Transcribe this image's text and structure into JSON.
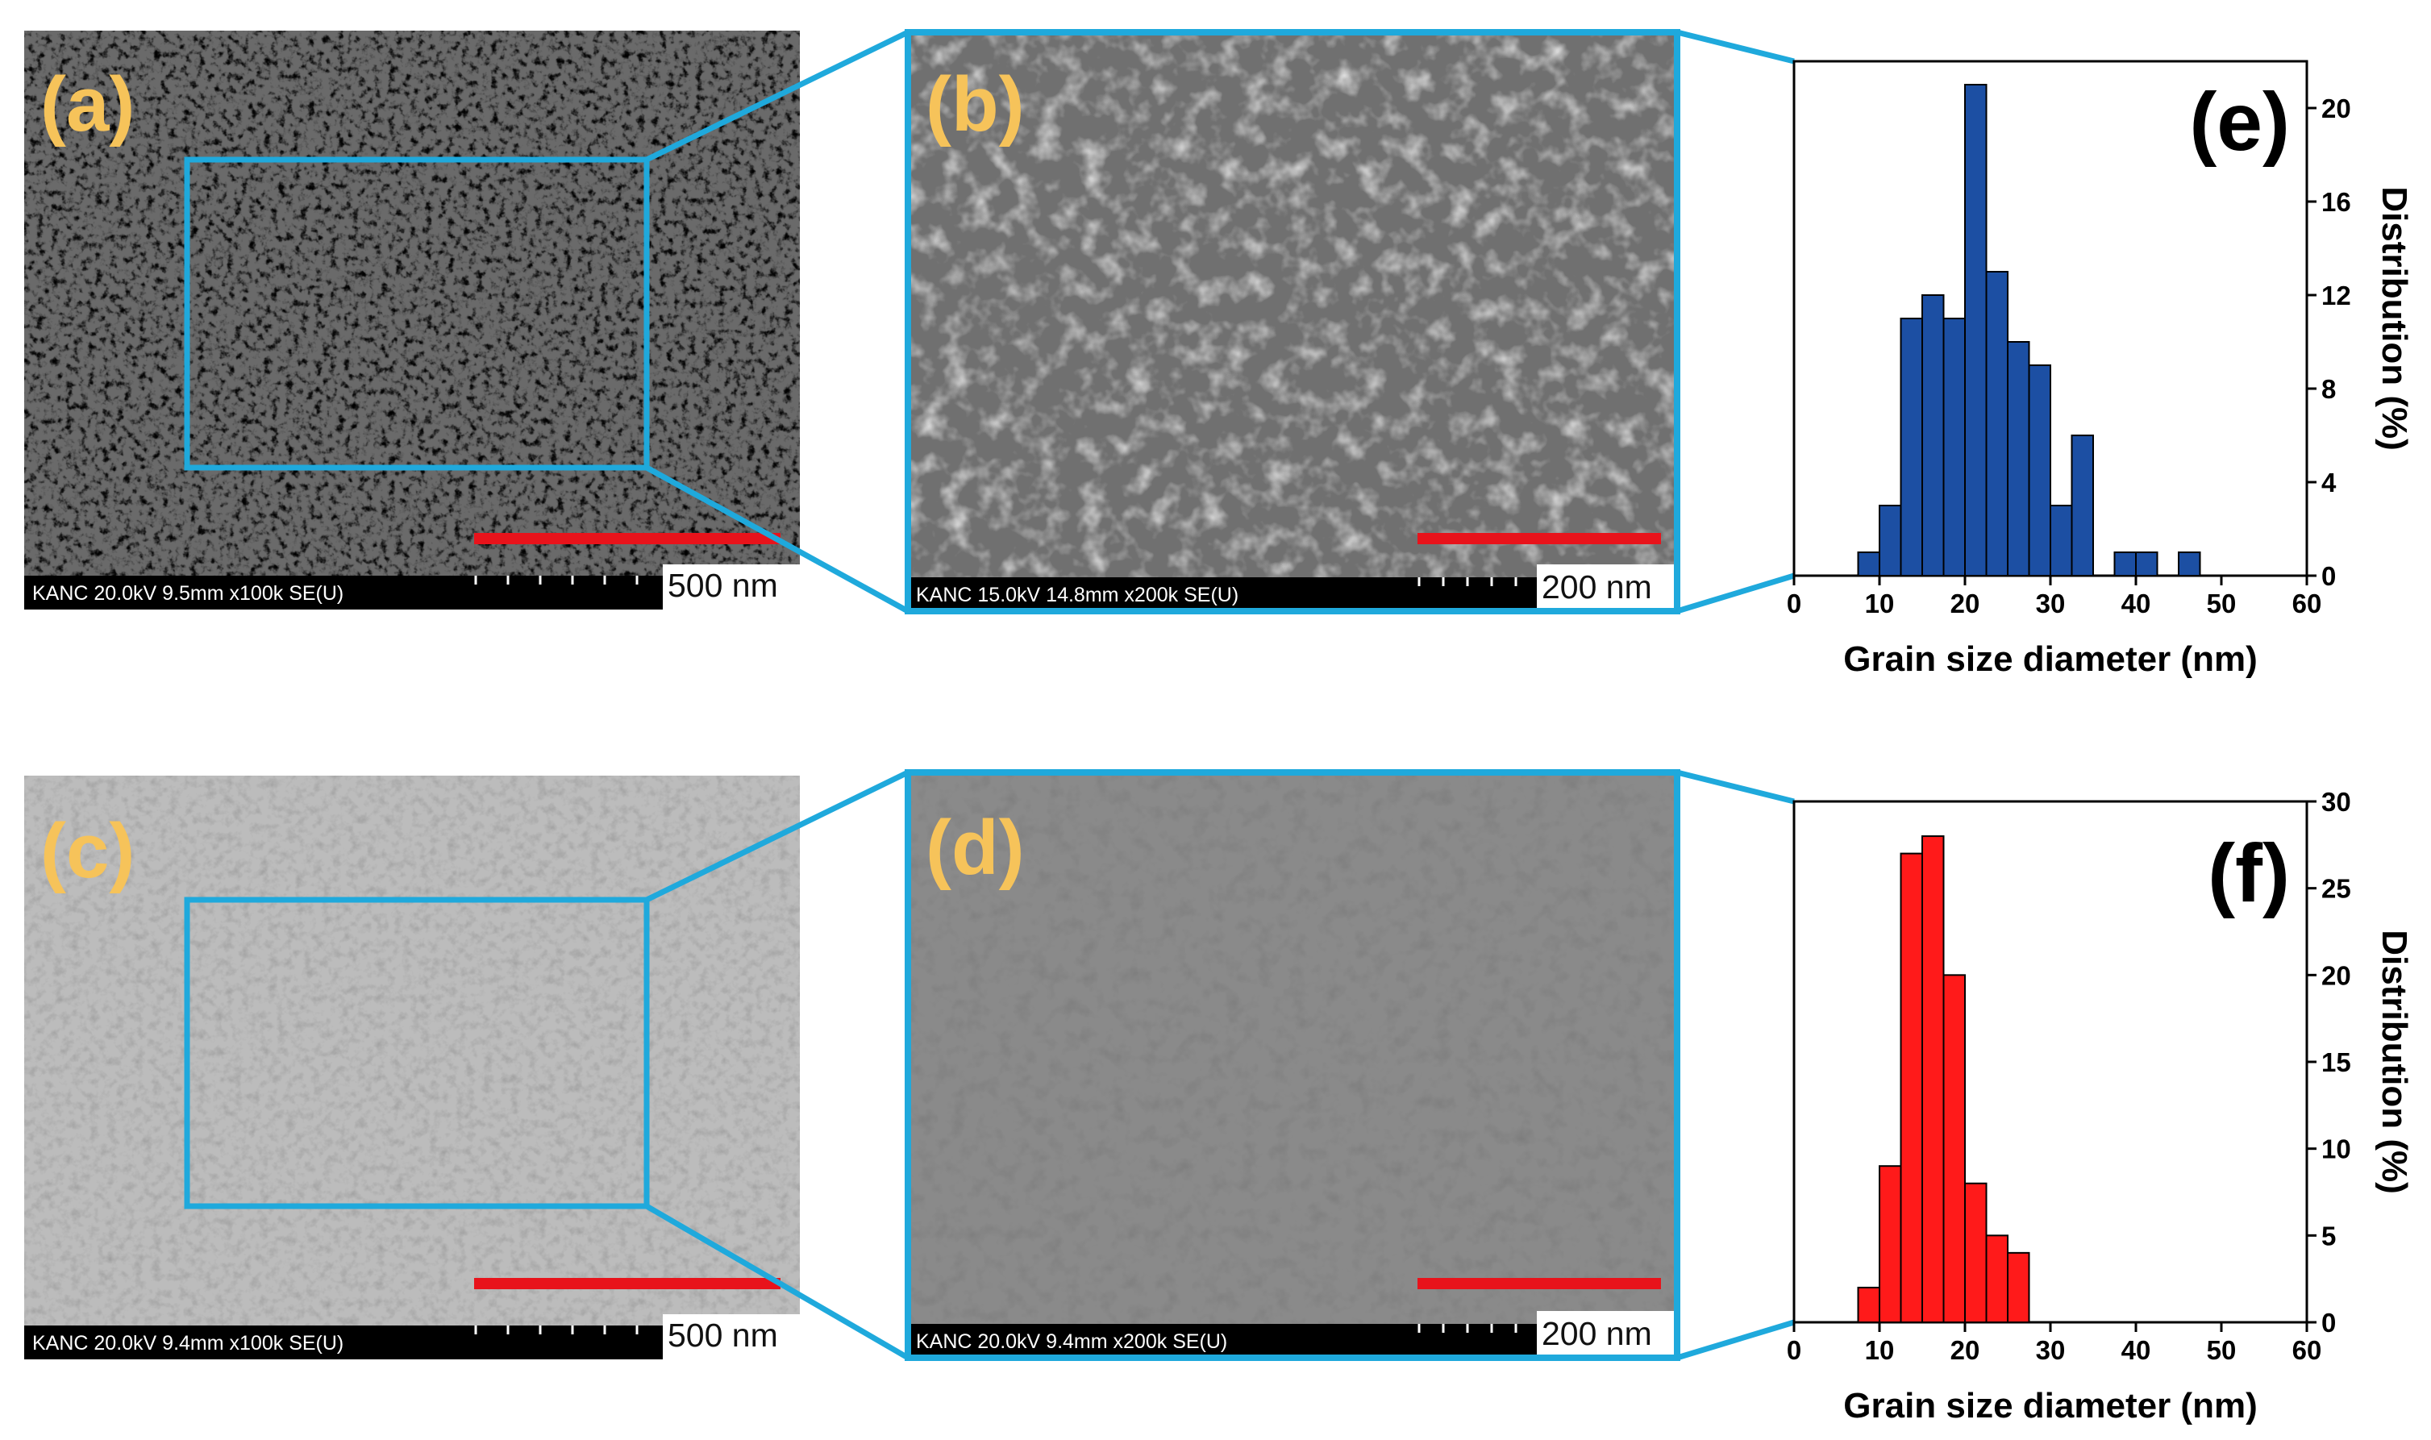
{
  "panels": {
    "a": {
      "label": "(a)",
      "info": "KANC 20.0kV 9.5mm x100k SE(U)",
      "scale": "500 nm"
    },
    "b": {
      "label": "(b)",
      "info": "KANC 15.0kV 14.8mm x200k SE(U)",
      "scale": "200 nm"
    },
    "c": {
      "label": "(c)",
      "info": "KANC 20.0kV 9.4mm x100k SE(U)",
      "scale": "500 nm"
    },
    "d": {
      "label": "(d)",
      "info": "KANC 20.0kV 9.4mm x200k SE(U)",
      "scale": "200 nm"
    }
  },
  "colors": {
    "accent_blue": "#1fa9dc",
    "label_orange": "#f6c35a",
    "scalebar_red": "#e8131b",
    "bar_blue": "#1c4fa3",
    "bar_red": "#ff1a1a"
  },
  "chart_data": [
    {
      "type": "bar",
      "panel_label": "(e)",
      "xlabel": "Grain size diameter (nm)",
      "ylabel": "Distribution (%)",
      "xlim": [
        0,
        60
      ],
      "ylim": [
        0,
        22
      ],
      "xticks": [
        0,
        10,
        20,
        30,
        40,
        50,
        60
      ],
      "yticks": [
        0,
        4,
        8,
        12,
        16,
        20
      ],
      "y_axis_side": "right",
      "bin_width": 2.5,
      "x": [
        8.75,
        11.25,
        13.75,
        16.25,
        18.75,
        21.25,
        23.75,
        26.25,
        28.75,
        31.25,
        33.75,
        36.25,
        38.75,
        41.25,
        43.75,
        46.25,
        48.75,
        51.25,
        53.75
      ],
      "values": [
        1,
        3,
        11,
        12,
        11,
        21,
        13,
        10,
        9,
        3,
        6,
        0,
        1,
        1,
        0,
        1,
        0,
        0,
        0
      ],
      "color": "#1c4fa3"
    },
    {
      "type": "bar",
      "panel_label": "(f)",
      "xlabel": "Grain size diameter (nm)",
      "ylabel": "Distribution (%)",
      "xlim": [
        0,
        60
      ],
      "ylim": [
        0,
        30
      ],
      "xticks": [
        0,
        10,
        20,
        30,
        40,
        50,
        60
      ],
      "yticks": [
        0,
        5,
        10,
        15,
        20,
        25,
        30
      ],
      "y_axis_side": "right",
      "bin_width": 2.5,
      "x": [
        8.75,
        11.25,
        13.75,
        16.25,
        18.75,
        21.25,
        23.75,
        26.25,
        28.75,
        31.25
      ],
      "values": [
        2,
        9,
        27,
        28,
        20,
        8,
        5,
        4,
        0,
        0
      ],
      "color": "#ff1a1a"
    }
  ]
}
